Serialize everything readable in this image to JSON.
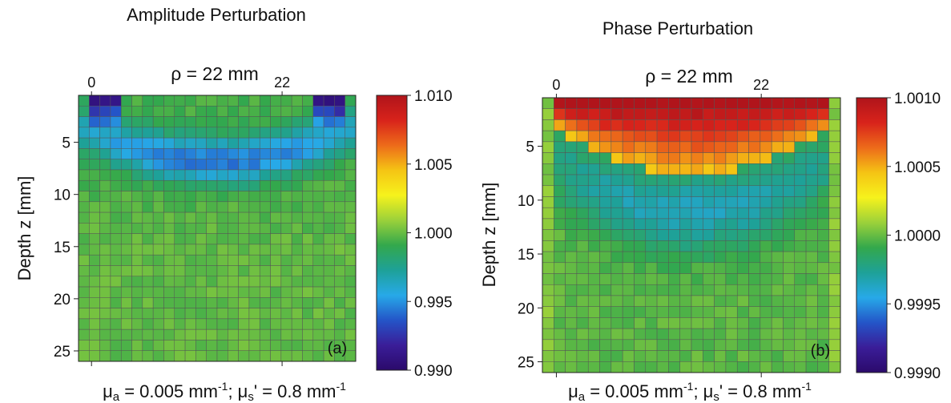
{
  "chart_data": [
    {
      "type": "heatmap",
      "title": "Amplitude Perturbation",
      "subtitle": "ρ = 22 mm",
      "panel_label": "(a)",
      "ylabel": "Depth z  [mm]",
      "caption": {
        "mua": "μa = 0.005 mm-1; μs' = 0.8 mm-1",
        "mua_sym": "μ",
        "mua_sub": "a",
        "mua_val": " = 0.005 mm",
        "mua_sup": "-1",
        "sep": "; ",
        "mus_sym": "μ",
        "mus_sub": "s",
        "mus_val": "' = 0.8 mm",
        "mus_sup": "-1"
      },
      "x_ticks": [
        0,
        22
      ],
      "x_tick_labels": [
        "0",
        "22"
      ],
      "xlim": [
        -1.5,
        30.5
      ],
      "y_ticks": [
        5,
        10,
        15,
        20,
        25
      ],
      "y_tick_labels": [
        "5",
        "10",
        "15",
        "20",
        "25"
      ],
      "ylim": [
        26,
        0.5
      ],
      "grid_cols": 26,
      "grid_rows": 25,
      "colorbar": {
        "min": 0.99,
        "max": 1.01,
        "ticks": [
          1.01,
          1.005,
          1.0,
          0.995,
          0.99
        ],
        "tick_labels": [
          "1.010",
          "1.005",
          "1.000",
          "0.995",
          "0.990"
        ]
      },
      "model": {
        "kind": "amplitude",
        "base": 0.9994,
        "dip": 0.0052,
        "edge_dip": 0.0085,
        "noise": 0.0004
      }
    },
    {
      "type": "heatmap",
      "title": "Phase Perturbation",
      "subtitle": "ρ = 22 mm",
      "panel_label": "(b)",
      "ylabel": "Depth z  [mm]",
      "caption": {
        "mua_sym": "μ",
        "mua_sub": "a",
        "mua_val": " = 0.005 mm",
        "mua_sup": "-1",
        "sep": "; ",
        "mus_sym": "μ",
        "mus_sub": "s",
        "mus_val": "' = 0.8 mm",
        "mus_sup": "-1"
      },
      "x_ticks": [
        0,
        22
      ],
      "x_tick_labels": [
        "0",
        "22"
      ],
      "xlim": [
        -1.5,
        30.5
      ],
      "y_ticks": [
        5,
        10,
        15,
        20,
        25
      ],
      "y_tick_labels": [
        "5",
        "10",
        "15",
        "20",
        "25"
      ],
      "ylim": [
        26,
        0.5
      ],
      "grid_cols": 26,
      "grid_rows": 25,
      "colorbar": {
        "min": 0.999,
        "max": 1.001,
        "ticks": [
          1.001,
          1.0005,
          1.0,
          0.9995,
          0.999
        ],
        "tick_labels": [
          "1.0010",
          "1.0005",
          "1.0000",
          "0.9995",
          "0.9990"
        ]
      },
      "model": {
        "kind": "phase",
        "base": 0.99998,
        "peak": 0.00095,
        "trough": 0.00033,
        "noise": 4e-05
      }
    }
  ],
  "colormap": [
    "#2b0a6b",
    "#3a1d98",
    "#2455c8",
    "#27a9e8",
    "#1ea198",
    "#33a84c",
    "#9bd13a",
    "#f6f21c",
    "#f5c414",
    "#ed6b1a",
    "#d8231b",
    "#b0141b"
  ]
}
